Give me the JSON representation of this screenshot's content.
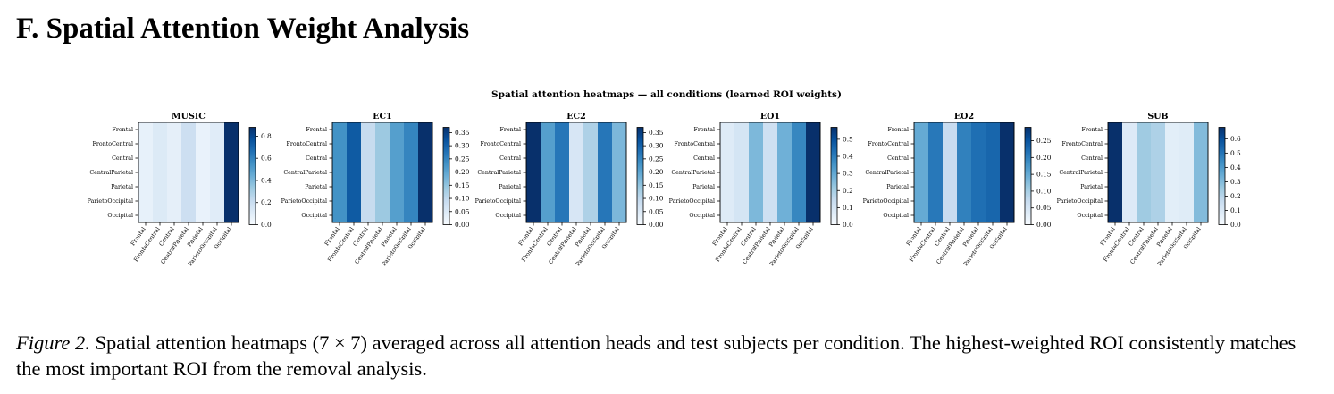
{
  "section_title": "F. Spatial Attention Weight Analysis",
  "caption": {
    "label": "Figure 2.",
    "text": "Spatial attention heatmaps (7 × 7) averaged across all attention heads and test subjects per condition. The highest-weighted ROI consistently matches the most important ROI from the removal analysis."
  },
  "colormap": {
    "name": "Blues",
    "stops": [
      "#f7fbff",
      "#deebf7",
      "#c6dbef",
      "#9ecae1",
      "#6baed6",
      "#4292c6",
      "#2171b5",
      "#08519c",
      "#08306b"
    ]
  },
  "chart_data": {
    "type": "heatmap",
    "title": "Spatial attention heatmaps — all conditions (learned ROI weights)",
    "rois": [
      "Frontal",
      "FrontoCentral",
      "Central",
      "CentralParietal",
      "Parietal",
      "ParietoOccipital",
      "Occipital"
    ],
    "panels": [
      {
        "title": "MUSIC",
        "vmin": 0,
        "vmax": 0.88,
        "ticks": [
          0.0,
          0.2,
          0.4,
          0.6,
          0.8
        ],
        "tick_labels": [
          "0.0",
          "0.2",
          "0.4",
          "0.6",
          "0.8"
        ],
        "column_values": [
          0.07,
          0.12,
          0.08,
          0.19,
          0.06,
          0.1,
          0.88
        ]
      },
      {
        "title": "EC1",
        "vmin": 0,
        "vmax": 0.37,
        "ticks": [
          0.0,
          0.05,
          0.1,
          0.15,
          0.2,
          0.25,
          0.3,
          0.35
        ],
        "tick_labels": [
          "0.00",
          "0.05",
          "0.10",
          "0.15",
          "0.20",
          "0.25",
          "0.30",
          "0.35"
        ],
        "column_values": [
          0.23,
          0.31,
          0.09,
          0.14,
          0.21,
          0.25,
          0.37
        ]
      },
      {
        "title": "EC2",
        "vmin": 0,
        "vmax": 0.37,
        "ticks": [
          0.0,
          0.05,
          0.1,
          0.15,
          0.2,
          0.25,
          0.3,
          0.35
        ],
        "tick_labels": [
          "0.00",
          "0.05",
          "0.10",
          "0.15",
          "0.20",
          "0.25",
          "0.30",
          "0.35"
        ],
        "column_values": [
          0.37,
          0.21,
          0.27,
          0.06,
          0.12,
          0.27,
          0.17
        ]
      },
      {
        "title": "EO1",
        "vmin": 0,
        "vmax": 0.57,
        "ticks": [
          0.0,
          0.1,
          0.2,
          0.3,
          0.4,
          0.5
        ],
        "tick_labels": [
          "0.0",
          "0.1",
          "0.2",
          "0.3",
          "0.4",
          "0.5"
        ],
        "column_values": [
          0.07,
          0.1,
          0.26,
          0.12,
          0.28,
          0.38,
          0.57
        ]
      },
      {
        "title": "EO2",
        "vmin": 0,
        "vmax": 0.29,
        "ticks": [
          0.0,
          0.05,
          0.1,
          0.15,
          0.2,
          0.25
        ],
        "tick_labels": [
          "0.00",
          "0.05",
          "0.10",
          "0.15",
          "0.20",
          "0.25"
        ],
        "column_values": [
          0.15,
          0.21,
          0.07,
          0.2,
          0.22,
          0.23,
          0.29
        ]
      },
      {
        "title": "SUB",
        "vmin": 0,
        "vmax": 0.68,
        "ticks": [
          0.0,
          0.1,
          0.2,
          0.3,
          0.4,
          0.5,
          0.6
        ],
        "tick_labels": [
          "0.0",
          "0.1",
          "0.2",
          "0.3",
          "0.4",
          "0.5",
          "0.6"
        ],
        "column_values": [
          0.68,
          0.09,
          0.25,
          0.22,
          0.07,
          0.08,
          0.3
        ]
      }
    ]
  }
}
